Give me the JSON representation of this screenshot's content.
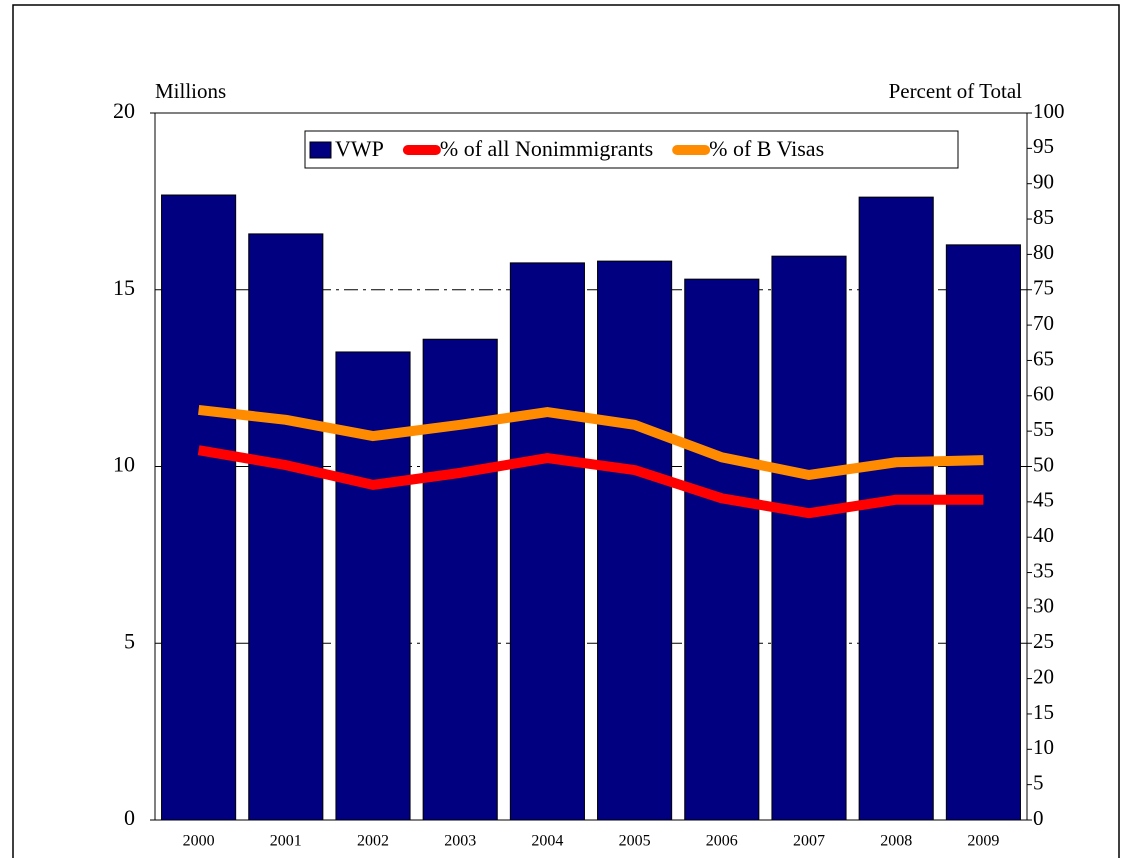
{
  "chart_data": {
    "type": "bar",
    "y_label": "Millions",
    "y2_label": "Percent of Total",
    "categories": [
      "2000",
      "2001",
      "2002",
      "2003",
      "2004",
      "2005",
      "2006",
      "2007",
      "2008",
      "2009"
    ],
    "series": [
      {
        "name": "VWP",
        "type": "bar",
        "color": "#000080",
        "values": [
          17.68,
          16.58,
          13.24,
          13.6,
          15.76,
          15.81,
          15.3,
          15.95,
          17.62,
          16.27
        ]
      },
      {
        "name": "% of all Nonimmigrants",
        "type": "line",
        "axis": "y2",
        "color": "#ff0000",
        "values": [
          52.3,
          50.2,
          47.4,
          49.1,
          51.2,
          49.5,
          45.5,
          43.4,
          45.3,
          45.3
        ]
      },
      {
        "name": "% of B Visas",
        "type": "line",
        "axis": "y2",
        "color": "#ff8c00",
        "values": [
          58.0,
          56.6,
          54.3,
          55.9,
          57.7,
          55.9,
          51.3,
          48.8,
          50.6,
          50.9
        ]
      }
    ],
    "ylim": [
      0,
      20
    ],
    "yticks": [
      0,
      5,
      10,
      15,
      20
    ],
    "y2lim": [
      0,
      100
    ],
    "y2ticks": [
      0,
      5,
      10,
      15,
      20,
      25,
      30,
      35,
      40,
      45,
      50,
      55,
      60,
      65,
      70,
      75,
      80,
      85,
      90,
      95,
      100
    ],
    "grid": true,
    "legend": "top"
  }
}
